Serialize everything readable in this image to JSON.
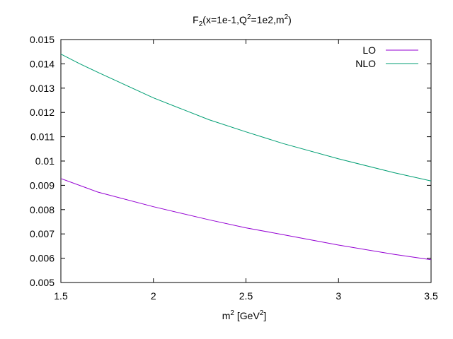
{
  "chart_data": {
    "type": "line",
    "title_parts": {
      "main": "F",
      "sub": "2",
      "rest": "(x=1e-1,Q",
      "sup1": "2",
      "rest2": "=1e2,m",
      "sup2": "2",
      "end": ")"
    },
    "xlabel_parts": {
      "main": "m",
      "sup1": "2",
      "rest": " [GeV",
      "sup2": "2",
      "end": "]"
    },
    "ylabel": "",
    "xlim": [
      1.5,
      3.5
    ],
    "ylim": [
      0.005,
      0.015
    ],
    "x_ticks": [
      1.5,
      2,
      2.5,
      3,
      3.5
    ],
    "x_tick_labels": [
      "1.5",
      "2",
      "2.5",
      "3",
      "3.5"
    ],
    "y_ticks": [
      0.005,
      0.006,
      0.007,
      0.008,
      0.009,
      0.01,
      0.011,
      0.012,
      0.013,
      0.014,
      0.015
    ],
    "y_tick_labels": [
      "0.005",
      "0.006",
      "0.007",
      "0.008",
      "0.009",
      "0.01",
      "0.011",
      "0.012",
      "0.013",
      "0.014",
      "0.015"
    ],
    "grid": false,
    "legend_position": "top-right",
    "series": [
      {
        "name": "LO",
        "color": "#9400d3",
        "x": [
          1.5,
          1.7,
          2.0,
          2.3,
          2.5,
          2.7,
          3.0,
          3.3,
          3.5
        ],
        "y": [
          0.00928,
          0.00872,
          0.00812,
          0.00758,
          0.00725,
          0.00697,
          0.00654,
          0.00616,
          0.00594
        ]
      },
      {
        "name": "NLO",
        "color": "#009e73",
        "x": [
          1.5,
          1.6,
          1.7,
          2.0,
          2.3,
          2.5,
          2.7,
          3.0,
          3.3,
          3.5
        ],
        "y": [
          0.0144,
          0.01401,
          0.01365,
          0.0126,
          0.0117,
          0.0112,
          0.01072,
          0.01009,
          0.00952,
          0.00918
        ]
      }
    ]
  }
}
